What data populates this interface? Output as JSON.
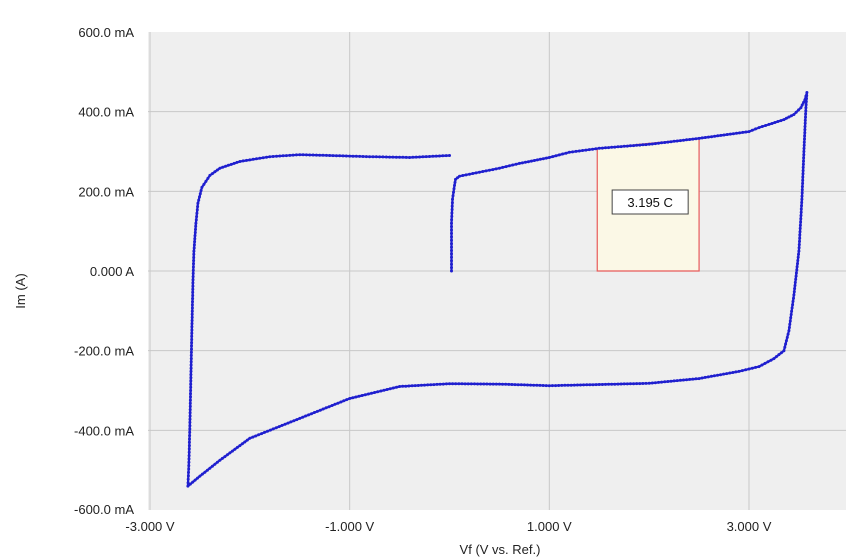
{
  "chart_data": {
    "type": "scatter",
    "title": "",
    "xlabel": "Vf (V vs. Ref.)",
    "ylabel": "Im (A)",
    "xlim": [
      -3.0,
      4.0
    ],
    "ylim": [
      -600,
      600
    ],
    "grid": true,
    "x_ticks": [
      {
        "value": -3.0,
        "label": "-3.000 V"
      },
      {
        "value": -1.0,
        "label": "-1.000 V"
      },
      {
        "value": 1.0,
        "label": "1.000 V"
      },
      {
        "value": 3.0,
        "label": "3.000 V"
      }
    ],
    "y_ticks": [
      {
        "value": 600,
        "label": "600.0 mA"
      },
      {
        "value": 400,
        "label": "400.0 mA"
      },
      {
        "value": 200,
        "label": "200.0 mA"
      },
      {
        "value": 0,
        "label": "0.000 A"
      },
      {
        "value": -200,
        "label": "-200.0 mA"
      },
      {
        "value": -400,
        "label": "-400.0 mA"
      },
      {
        "value": -600,
        "label": "-600.0 mA"
      }
    ],
    "series": [
      {
        "color": "#1f1fcf",
        "points": [
          [
            0.02,
            0
          ],
          [
            0.02,
            60
          ],
          [
            0.02,
            120
          ],
          [
            0.03,
            180
          ],
          [
            0.05,
            215
          ],
          [
            0.06,
            230
          ],
          [
            0.1,
            238
          ],
          [
            0.3,
            248
          ],
          [
            0.5,
            258
          ],
          [
            0.7,
            270
          ],
          [
            1.0,
            285
          ],
          [
            1.2,
            298
          ],
          [
            1.5,
            308
          ],
          [
            2.0,
            318
          ],
          [
            2.5,
            333
          ],
          [
            3.0,
            350
          ],
          [
            3.1,
            360
          ],
          [
            3.2,
            368
          ],
          [
            3.35,
            380
          ],
          [
            3.45,
            393
          ],
          [
            3.52,
            410
          ],
          [
            3.56,
            430
          ],
          [
            3.58,
            448
          ],
          [
            3.57,
            410
          ],
          [
            3.55,
            300
          ],
          [
            3.53,
            180
          ],
          [
            3.5,
            50
          ],
          [
            3.45,
            -60
          ],
          [
            3.4,
            -150
          ],
          [
            3.35,
            -200
          ],
          [
            3.25,
            -220
          ],
          [
            3.1,
            -240
          ],
          [
            2.9,
            -252
          ],
          [
            2.5,
            -270
          ],
          [
            2.0,
            -282
          ],
          [
            1.5,
            -285
          ],
          [
            1.0,
            -288
          ],
          [
            0.5,
            -284
          ],
          [
            0.0,
            -283
          ],
          [
            -0.5,
            -290
          ],
          [
            -1.0,
            -320
          ],
          [
            -1.5,
            -370
          ],
          [
            -2.0,
            -420
          ],
          [
            -2.3,
            -475
          ],
          [
            -2.5,
            -515
          ],
          [
            -2.62,
            -540
          ],
          [
            -2.61,
            -480
          ],
          [
            -2.6,
            -380
          ],
          [
            -2.59,
            -260
          ],
          [
            -2.58,
            -140
          ],
          [
            -2.57,
            -30
          ],
          [
            -2.56,
            50
          ],
          [
            -2.54,
            120
          ],
          [
            -2.52,
            170
          ],
          [
            -2.48,
            210
          ],
          [
            -2.4,
            240
          ],
          [
            -2.3,
            258
          ],
          [
            -2.1,
            275
          ],
          [
            -1.8,
            287
          ],
          [
            -1.5,
            292
          ],
          [
            -1.2,
            290
          ],
          [
            -0.8,
            287
          ],
          [
            -0.4,
            285
          ],
          [
            0.0,
            290
          ]
        ]
      }
    ],
    "annotations": [
      {
        "label": "3.195 C",
        "x_start": 1.48,
        "x_end": 2.5
      }
    ]
  }
}
